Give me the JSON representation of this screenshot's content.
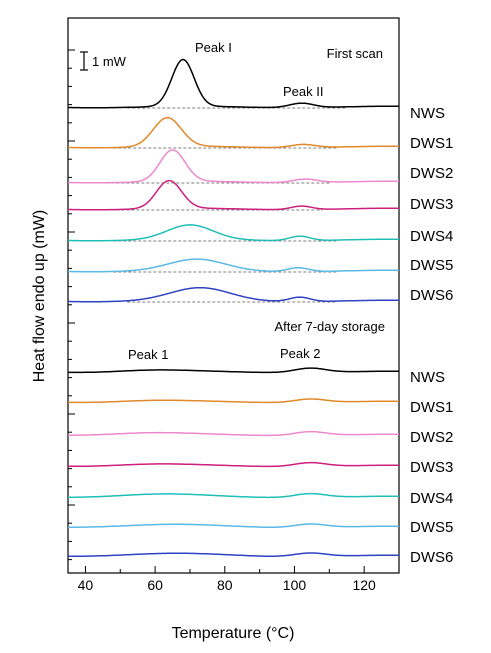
{
  "chart_data": {
    "type": "line",
    "xlabel": "Temperature (°C)",
    "ylabel": "Heat flow endo up (mW)",
    "xlim": [
      35,
      130
    ],
    "xticks": [
      "40",
      "60",
      "80",
      "100",
      "120"
    ],
    "scale_bar_label": "1 mW",
    "annotations": {
      "first_scan": "First scan",
      "after_storage": "After 7-day storage",
      "peak_I": "Peak I",
      "peak_II": "Peak II",
      "peak_1": "Peak 1",
      "peak_2": "Peak 2"
    },
    "colors": {
      "NWS": "#000000",
      "DWS1": "#e0892a",
      "DWS2": "#ee88cc",
      "DWS3": "#cc1f7f",
      "DWS4": "#20bfb6",
      "DWS5": "#5ab9e6",
      "DWS6": "#2e43c4"
    },
    "series": [
      {
        "name": "NWS",
        "group": "first_scan",
        "peaks": [
          {
            "center": 68,
            "width": 3.2,
            "height": 2.6
          },
          {
            "center": 102,
            "width": 3.5,
            "height": 0.25
          }
        ]
      },
      {
        "name": "DWS1",
        "group": "first_scan",
        "peaks": [
          {
            "center": 63.5,
            "width": 4.0,
            "height": 1.6
          },
          {
            "center": 102.5,
            "width": 3.5,
            "height": 0.18
          }
        ]
      },
      {
        "name": "DWS2",
        "group": "first_scan",
        "peaks": [
          {
            "center": 65,
            "width": 3.6,
            "height": 1.75
          },
          {
            "center": 103,
            "width": 3.5,
            "height": 0.2
          }
        ]
      },
      {
        "name": "DWS3",
        "group": "first_scan",
        "peaks": [
          {
            "center": 64,
            "width": 3.6,
            "height": 1.55
          },
          {
            "center": 102,
            "width": 3.0,
            "height": 0.2
          }
        ]
      },
      {
        "name": "DWS4",
        "group": "first_scan",
        "peaks": [
          {
            "center": 70,
            "width": 6.5,
            "height": 0.8
          },
          {
            "center": 101.5,
            "width": 3.0,
            "height": 0.25
          }
        ]
      },
      {
        "name": "DWS5",
        "group": "first_scan",
        "peaks": [
          {
            "center": 72,
            "width": 8.0,
            "height": 0.62
          },
          {
            "center": 101,
            "width": 3.0,
            "height": 0.22
          }
        ]
      },
      {
        "name": "DWS6",
        "group": "first_scan",
        "peaks": [
          {
            "center": 73,
            "width": 8.5,
            "height": 0.7
          },
          {
            "center": 101.5,
            "width": 3.0,
            "height": 0.25
          }
        ]
      },
      {
        "name": "NWS",
        "group": "after_storage",
        "peaks": [
          {
            "center": 58,
            "width": 10,
            "height": 0.1
          },
          {
            "center": 104.5,
            "width": 4.5,
            "height": 0.25
          }
        ]
      },
      {
        "name": "DWS1",
        "group": "after_storage",
        "peaks": [
          {
            "center": 58,
            "width": 10,
            "height": 0.08
          },
          {
            "center": 104.5,
            "width": 4.5,
            "height": 0.2
          }
        ]
      },
      {
        "name": "DWS2",
        "group": "after_storage",
        "peaks": [
          {
            "center": 57,
            "width": 11,
            "height": 0.12
          },
          {
            "center": 104.5,
            "width": 4.5,
            "height": 0.22
          }
        ]
      },
      {
        "name": "DWS3",
        "group": "after_storage",
        "peaks": [
          {
            "center": 58,
            "width": 11,
            "height": 0.1
          },
          {
            "center": 104.5,
            "width": 4.5,
            "height": 0.22
          }
        ]
      },
      {
        "name": "DWS4",
        "group": "after_storage",
        "peaks": [
          {
            "center": 60,
            "width": 12,
            "height": 0.15
          },
          {
            "center": 104.5,
            "width": 4.5,
            "height": 0.22
          }
        ]
      },
      {
        "name": "DWS5",
        "group": "after_storage",
        "peaks": [
          {
            "center": 62,
            "width": 14,
            "height": 0.12
          },
          {
            "center": 104.5,
            "width": 4.5,
            "height": 0.2
          }
        ]
      },
      {
        "name": "DWS6",
        "group": "after_storage",
        "peaks": [
          {
            "center": 63,
            "width": 14,
            "height": 0.12
          },
          {
            "center": 104.5,
            "width": 4.5,
            "height": 0.2
          }
        ]
      }
    ]
  }
}
